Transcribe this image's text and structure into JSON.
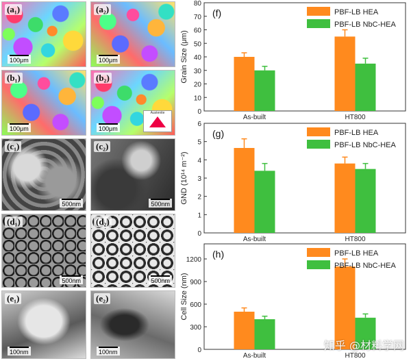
{
  "micrographs": [
    {
      "label": "(a₁)",
      "scale": "100μm"
    },
    {
      "label": "(a₂)",
      "scale": "100μm"
    },
    {
      "label": "(b₁)",
      "scale": "100μm"
    },
    {
      "label": "(b₂)",
      "scale": "100μm",
      "inset_label": "Austenite"
    },
    {
      "label": "(c₁)",
      "scale": "500nm"
    },
    {
      "label": "(c₂)",
      "scale": "500nm"
    },
    {
      "label": "(d₁)",
      "scale": "500nm"
    },
    {
      "label": "(d₂)",
      "scale": "500nm"
    },
    {
      "label": "(e₁)",
      "scale": "100nm"
    },
    {
      "label": "(e₂)",
      "scale": "100nm"
    }
  ],
  "watermark": "知乎 @材料学网",
  "colors": {
    "hea": "#ff8a1e",
    "nbc": "#3fbf3f",
    "error_hea": "#ff8a1e",
    "error_nbc": "#3fbf3f"
  },
  "chart_data": [
    {
      "type": "bar",
      "panel": "(f)",
      "categories": [
        "As-built",
        "HT800"
      ],
      "series": [
        {
          "name": "PBF-LB HEA",
          "values": [
            40,
            55
          ],
          "errors": [
            3,
            5
          ]
        },
        {
          "name": "PBF-LB NbC-HEA",
          "values": [
            30,
            35
          ],
          "errors": [
            3,
            4
          ]
        }
      ],
      "ylabel": "Grain Size (μm)",
      "ylim": [
        0,
        80
      ],
      "yticks": [
        "0",
        "10",
        "20",
        "30",
        "40",
        "50",
        "60",
        "70",
        "80"
      ],
      "ytick_values": [
        0,
        10,
        20,
        30,
        40,
        50,
        60,
        70,
        80
      ]
    },
    {
      "type": "bar",
      "panel": "(g)",
      "categories": [
        "As-built",
        "HT800"
      ],
      "series": [
        {
          "name": "PBF-LB HEA",
          "values": [
            4.65,
            3.8
          ],
          "errors": [
            0.5,
            0.35
          ]
        },
        {
          "name": "PBF-LB NbC-HEA",
          "values": [
            3.4,
            3.5
          ],
          "errors": [
            0.4,
            0.3
          ]
        }
      ],
      "ylabel": "GND (10¹⁴ m⁻²)",
      "ylim": [
        0,
        6
      ],
      "yticks": [
        "0",
        "1",
        "2",
        "3",
        "4",
        "5",
        "6"
      ],
      "ytick_values": [
        0,
        1,
        2,
        3,
        4,
        5,
        6
      ]
    },
    {
      "type": "bar",
      "panel": "(h)",
      "categories": [
        "As-built",
        "HT800"
      ],
      "series": [
        {
          "name": "PBF-LB HEA",
          "values": [
            500,
            1100
          ],
          "errors": [
            50,
            100
          ]
        },
        {
          "name": "PBF-LB NbC-HEA",
          "values": [
            400,
            420
          ],
          "errors": [
            40,
            50
          ]
        }
      ],
      "ylabel": "Cell Size (nm)",
      "ylim": [
        0,
        1400
      ],
      "yticks": [
        "0",
        "300",
        "600",
        "900",
        "1200"
      ],
      "ytick_values": [
        0,
        300,
        600,
        900,
        1200
      ]
    }
  ]
}
